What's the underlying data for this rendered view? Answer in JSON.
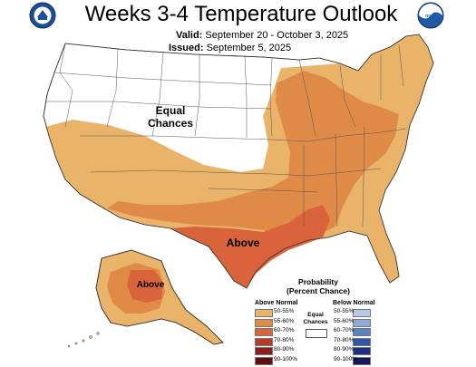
{
  "title": "Weeks 3-4 Temperature Outlook",
  "valid_label": "Valid:",
  "valid_value": "September 20 - October 3, 2025",
  "issued_label": "Issued:",
  "issued_value": "September 5, 2025",
  "logos": {
    "left": "NOAA NWS seal",
    "right": "noaa"
  },
  "map": {
    "labels": {
      "equal_chances_1": "Equal",
      "equal_chances_2": "Chances",
      "above_conus": "Above",
      "above_alaska": "Above"
    }
  },
  "legend": {
    "title_1": "Probability",
    "title_2": "(Percent Chance)",
    "above_heading": "Above Normal",
    "below_heading": "Below Normal",
    "equal_1": "Equal",
    "equal_2": "Chances",
    "above": [
      {
        "label": "50-55%",
        "color": "#e9b46a"
      },
      {
        "label": "55-60%",
        "color": "#e08a48"
      },
      {
        "label": "60-70%",
        "color": "#d9633a"
      },
      {
        "label": "70-80%",
        "color": "#b53a27"
      },
      {
        "label": "80-90%",
        "color": "#8c1d1a"
      },
      {
        "label": "90-100%",
        "color": "#5e0f0e"
      }
    ],
    "below": [
      {
        "label": "50-55%",
        "color": "#b8c8e6"
      },
      {
        "label": "55-60%",
        "color": "#8ea8d8"
      },
      {
        "label": "60-70%",
        "color": "#5a82c4"
      },
      {
        "label": "70-80%",
        "color": "#2f56a8"
      },
      {
        "label": "80-90%",
        "color": "#1d2f86"
      },
      {
        "label": "90-100%",
        "color": "#13185a"
      }
    ]
  }
}
